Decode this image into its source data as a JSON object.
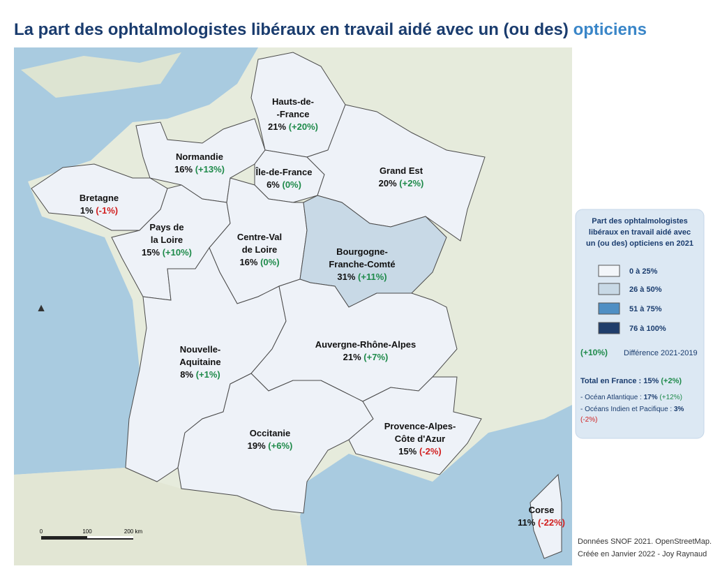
{
  "title": "La part des ophtalmologistes libéraux en travail aidé avec un (ou des)",
  "title_accent": "opticiens",
  "regions": [
    {
      "name": [
        "Hauts-de-",
        "-France"
      ],
      "share": "21%",
      "diff": "(+20%)"
    },
    {
      "name": [
        "Normandie"
      ],
      "share": "16%",
      "diff": "(+13%)"
    },
    {
      "name": [
        "Île-de-France"
      ],
      "share": "6%",
      "diff": "(0%)"
    },
    {
      "name": [
        "Grand Est"
      ],
      "share": "20%",
      "diff": "(+2%)"
    },
    {
      "name": [
        "Bretagne"
      ],
      "share": "1%",
      "diff": "(-1%)"
    },
    {
      "name": [
        "Pays de",
        "la Loire"
      ],
      "share": "15%",
      "diff": "(+10%)"
    },
    {
      "name": [
        "Centre-Val",
        "de Loire"
      ],
      "share": "16%",
      "diff": "(0%)"
    },
    {
      "name": [
        "Bourgogne-",
        "Franche-Comté"
      ],
      "share": "31%",
      "diff": "(+11%)"
    },
    {
      "name": [
        "Nouvelle-",
        "Aquitaine"
      ],
      "share": "8%",
      "diff": "(+1%)"
    },
    {
      "name": [
        "Auvergne-Rhône-Alpes"
      ],
      "share": "21%",
      "diff": "(+7%)"
    },
    {
      "name": [
        "Occitanie"
      ],
      "share": "19%",
      "diff": "(+6%)"
    },
    {
      "name": [
        "Provence-Alpes-",
        "Côte d'Azur"
      ],
      "share": "15%",
      "diff": "(-2%)"
    },
    {
      "name": [
        "Corse"
      ],
      "share": "11%",
      "diff": "(-22%)"
    }
  ],
  "legend": {
    "title": [
      "Part des ophtalmologistes",
      "libéraux en travail aidé avec",
      "un (ou des) opticiens en 2021"
    ],
    "classes": [
      "0 à 25%",
      "26 à 50%",
      "51 à 75%",
      "76 à 100%"
    ],
    "diff_sample": "(+10%)",
    "diff_label": "Différence 2021-2019",
    "total_label": "Total en France :",
    "total_value": "15%",
    "total_diff": "(+2%)",
    "atlantic_label": "- Océan Atlantique :",
    "atlantic_value": "17%",
    "atlantic_diff": "(+12%)",
    "indian_label": "- Océans Indien et Pacifique :",
    "indian_value": "3%",
    "indian_diff": "(-2%)"
  },
  "scale": [
    "0",
    "100",
    "200 km"
  ],
  "source": [
    "Données SNOF 2021. OpenStreetMap.",
    "Créée en Janvier 2022 - Joy Raynaud"
  ]
}
